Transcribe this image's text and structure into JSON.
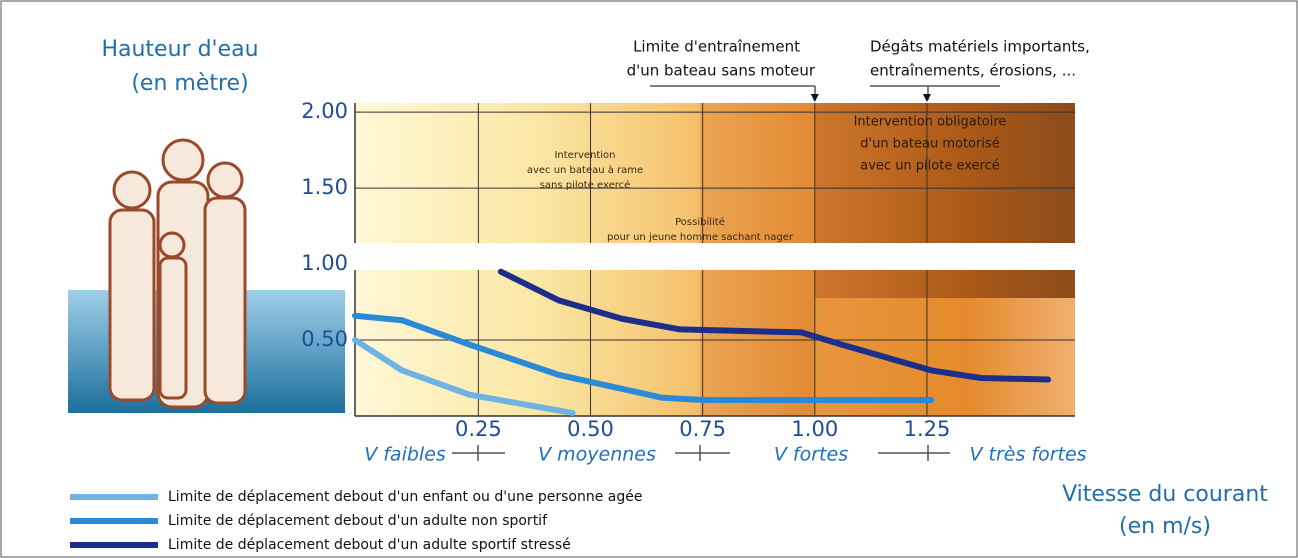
{
  "chart_data": {
    "type": "line",
    "y_title": "Hauteur d'eau",
    "y_unit": "(en mètre)",
    "x_title": "Vitesse du courant",
    "x_unit": "(en m/s)",
    "annotations": [
      {
        "lines": [
          "Limite d'entraînement",
          "d'un bateau sans moteur"
        ],
        "x": 1.0
      },
      {
        "lines": [
          "Dégâts matériels importants,",
          "entraînements, érosions, ..."
        ],
        "x": 1.25
      }
    ],
    "zones": [
      {
        "lines": [
          "Intervention",
          "avec un bateau à rame",
          "sans pilote exercé"
        ]
      },
      {
        "lines": [
          "Possibilité",
          "pour un jeune homme sachant nager"
        ]
      },
      {
        "lines": [
          "Intervention obligatoire",
          "d'un bateau motorisé",
          "avec un pilote exercé"
        ]
      }
    ],
    "speed_classes": [
      "V faibles",
      "V moyennes",
      "V fortes",
      "V très fortes"
    ],
    "xlim": [
      -0.025,
      1.58
    ],
    "ylim": [
      0,
      2.06
    ],
    "xticks": [
      0.25,
      0.5,
      0.75,
      1,
      1.25
    ],
    "yticks": [
      {
        "value": 0.5,
        "label": "0.50"
      },
      {
        "value": 1,
        "label": "1.00"
      },
      {
        "value": 1.5,
        "label": "1.50"
      },
      {
        "value": 2,
        "label": "2.00"
      }
    ],
    "xtick_labels": [
      "0.25",
      "0.50",
      "0.75",
      "1.00",
      "1.25"
    ],
    "grid": true,
    "series": [
      {
        "name": "Limite de déplacement debout d'un enfant ou d'une personne agée",
        "color": "#6fb3e3",
        "x": [
          -0.025,
          0.08,
          0.23,
          0.46
        ],
        "values": [
          0.5,
          0.3,
          0.14,
          0.02
        ]
      },
      {
        "name": "Limite de déplacement debout d'un adulte non sportif",
        "color": "#2a8ad8",
        "x": [
          -0.025,
          0.08,
          0.23,
          0.43,
          0.66,
          0.75,
          1.26
        ],
        "values": [
          0.66,
          0.63,
          0.47,
          0.27,
          0.12,
          0.105,
          0.105
        ]
      },
      {
        "name": "Limite de déplacement debout d'un adulte sportif stressé",
        "color": "#1b2f8a",
        "x": [
          0.3,
          0.43,
          0.57,
          0.7,
          0.97,
          1.06,
          1.26,
          1.37,
          1.52
        ],
        "values": [
          0.95,
          0.76,
          0.64,
          0.57,
          0.55,
          0.47,
          0.3,
          0.25,
          0.24
        ]
      }
    ]
  }
}
